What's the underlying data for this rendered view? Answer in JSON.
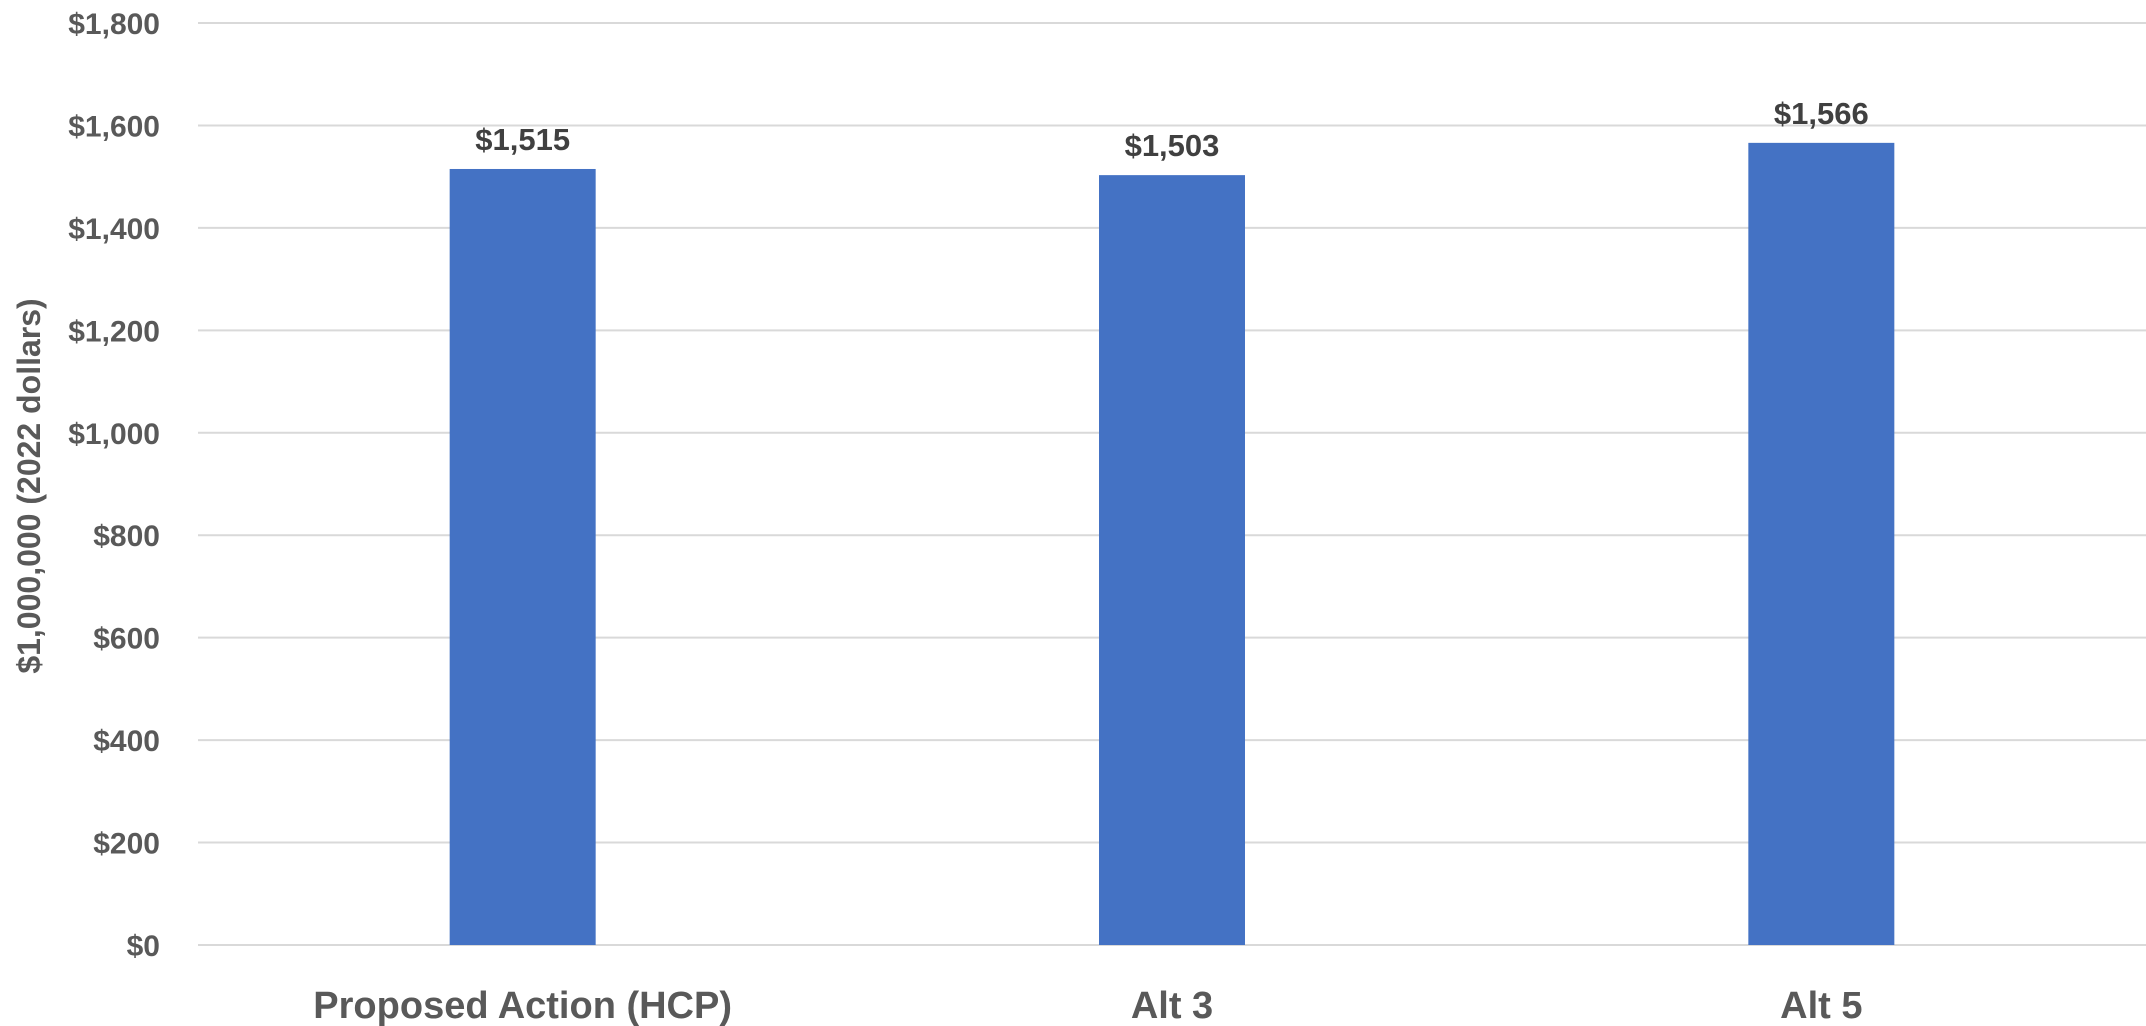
{
  "chart_data": {
    "type": "bar",
    "categories": [
      "Proposed Action (HCP)",
      "Alt 3",
      "Alt 5"
    ],
    "values": [
      1515,
      1503,
      1566
    ],
    "data_labels": [
      "$1,515",
      "$1,503",
      "$1,566"
    ],
    "series": [
      {
        "values": [
          1515,
          1503,
          1566
        ],
        "color": "#4472C4"
      }
    ],
    "title": "",
    "xlabel": "",
    "ylabel": "$1,000,000 (2022 dollars)",
    "ylim": [
      0,
      1800
    ],
    "yticks": [
      0,
      200,
      400,
      600,
      800,
      1000,
      1200,
      1400,
      1600,
      1800
    ],
    "ytick_labels": [
      "$0",
      "$200",
      "$400",
      "$600",
      "$800",
      "$1,000",
      "$1,200",
      "$1,400",
      "$1,600",
      "$1,800"
    ],
    "grid": true,
    "legend": "none",
    "colors": {
      "bar": "#4472C4",
      "grid": "#d9d9d9",
      "tick_text": "#595959",
      "label_text": "#404040"
    }
  }
}
